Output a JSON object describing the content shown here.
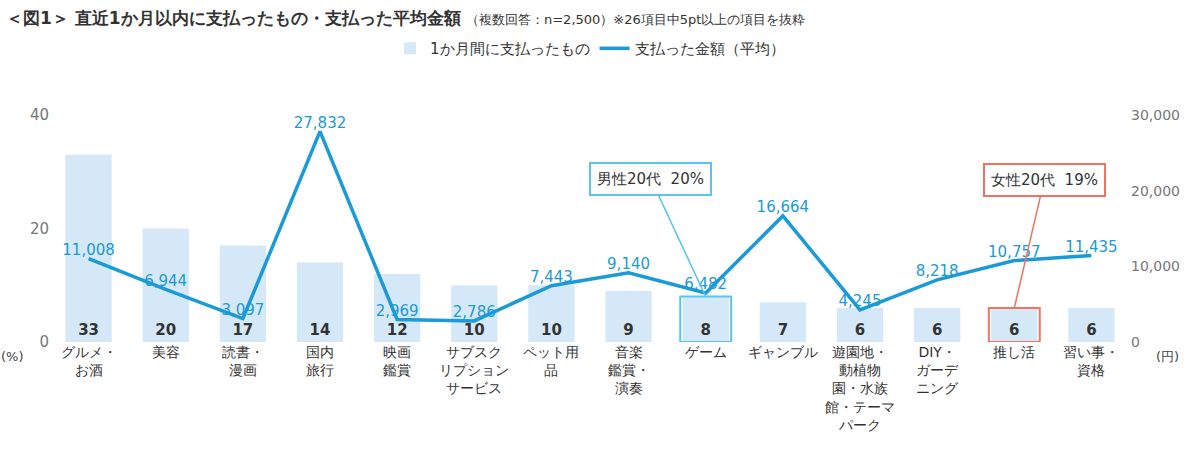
{
  "chart_data": {
    "type": "bar",
    "title": "＜図1＞ 直近1か月以内に支払ったもの・支払った平均金額",
    "subtitle": "（複数回答：n=2,500）※26項目中5pt以上の項目を抜粋",
    "categories": [
      "グルメ・\nお酒",
      "美容",
      "読書・\n漫画",
      "国内\n旅行",
      "映画\n鑑賞",
      "サブスク\nリプション\nサービス",
      "ペット用\n品",
      "音楽\n鑑賞・\n演奏",
      "ゲーム",
      "ギャンブル",
      "遊園地・\n動植物\n園・水族\n館・テーマ\nパーク",
      "DIY・\nガーデ\nニング",
      "推し活",
      "習い事・\n資格"
    ],
    "series": [
      {
        "name": "1か月間に支払ったもの",
        "type": "bar",
        "color": "#d5e8f8",
        "values": [
          33,
          20,
          17,
          14,
          12,
          10,
          10,
          9,
          8,
          7,
          6,
          6,
          6,
          6
        ],
        "data_labels": true
      },
      {
        "name": "支払った金額（平均）",
        "type": "line",
        "axis": "y2",
        "color": "#1a9ad6",
        "values": [
          11008,
          6944,
          3097,
          27832,
          2969,
          2786,
          7443,
          9140,
          6482,
          16664,
          4245,
          8218,
          10757,
          11435
        ],
        "value_labels": [
          "11,008",
          "6,944",
          "3,097",
          "27,832",
          "2,969",
          "2,786",
          "7,443",
          "9,140",
          "6,482",
          "16,664",
          "4,245",
          "8,218",
          "10,757",
          "11,435"
        ],
        "data_labels": true
      }
    ],
    "y_label": "(%)",
    "y2_label": "(円)",
    "ylim": [
      0,
      40
    ],
    "yticks": [
      0,
      20,
      40
    ],
    "y2lim": [
      0,
      30000
    ],
    "y2ticks": [
      {
        "value": 0,
        "label": "0"
      },
      {
        "value": 10000,
        "label": "10,000"
      },
      {
        "value": 20000,
        "label": "20,000"
      },
      {
        "value": 30000,
        "label": "30,000"
      }
    ],
    "grid": false,
    "legend": "top",
    "annotations": [
      {
        "text": "男性20代  20%",
        "category": "ゲーム",
        "color": "#5bc3ef"
      },
      {
        "text": "女性20代  19%",
        "category": "推し活",
        "color": "#ee7361"
      }
    ]
  }
}
